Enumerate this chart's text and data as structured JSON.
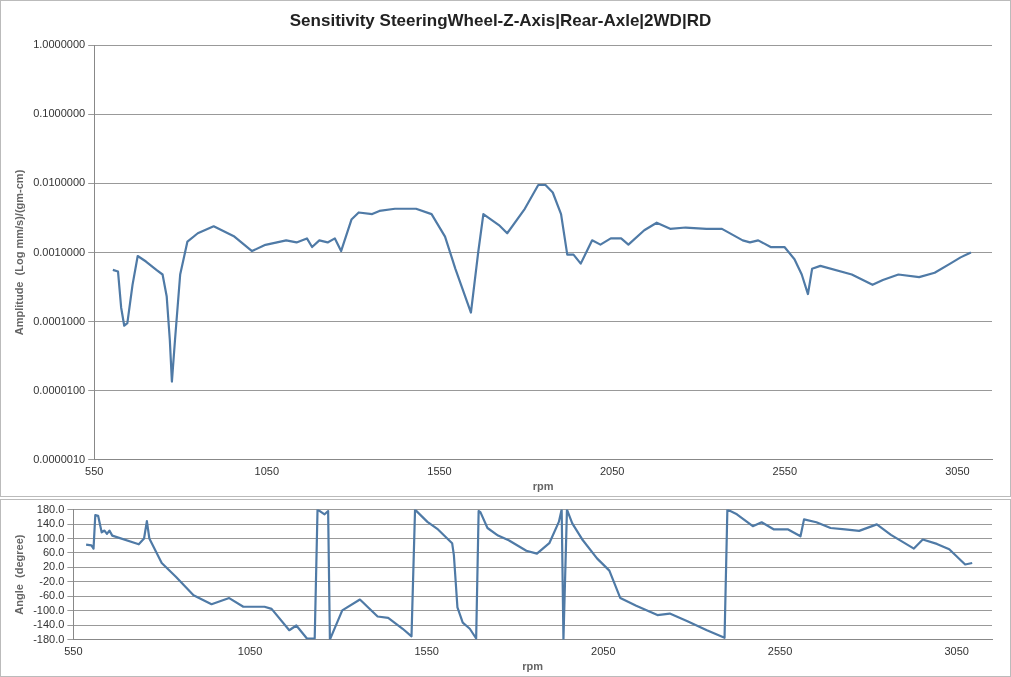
{
  "chart_data": [
    {
      "type": "line",
      "title": "Sensitivity SteeringWheel-Z-Axis|Rear-Axle|2WD|RD",
      "xlabel": "rpm",
      "ylabel": "Amplitude  (Log mm/s)/(gm-cm)",
      "log": "y",
      "grid": "y",
      "legend": false,
      "marker": "none",
      "xlim": [
        550,
        3150
      ],
      "xticks": [
        550,
        1050,
        1550,
        2050,
        2550,
        3050
      ],
      "ylim": [
        1e-06,
        1
      ],
      "yticks": [
        {
          "value": 1e-06,
          "label": "0.0000010"
        },
        {
          "value": 1e-05,
          "label": "0.0000100"
        },
        {
          "value": 0.0001,
          "label": "0.0001000"
        },
        {
          "value": 0.001,
          "label": "0.0010000"
        },
        {
          "value": 0.01,
          "label": "0.0100000"
        },
        {
          "value": 0.1,
          "label": "0.1000000"
        },
        {
          "value": 1,
          "label": "1.0000000"
        }
      ],
      "x": [
        604,
        619,
        628,
        637,
        646,
        661,
        676,
        700,
        730,
        748,
        760,
        769,
        775,
        784,
        799,
        820,
        850,
        896,
        956,
        1007,
        1046,
        1106,
        1136,
        1166,
        1181,
        1202,
        1226,
        1247,
        1265,
        1295,
        1316,
        1355,
        1376,
        1421,
        1482,
        1527,
        1566,
        1596,
        1641,
        1662,
        1677,
        1722,
        1746,
        1797,
        1836,
        1857,
        1878,
        1902,
        1920,
        1938,
        1959,
        1992,
        2016,
        2046,
        2076,
        2097,
        2143,
        2179,
        2218,
        2263,
        2323,
        2368,
        2428,
        2449,
        2473,
        2509,
        2549,
        2578,
        2599,
        2617,
        2629,
        2653,
        2744,
        2804,
        2834,
        2879,
        2939,
        2984,
        3029,
        3059,
        3089
      ],
      "series": [
        {
          "color": "#4f7aa6",
          "values": [
            0.00056,
            0.00053,
            0.00016,
            8.7e-05,
            9.5e-05,
            0.00034,
            0.00089,
            0.00074,
            0.00056,
            0.00048,
            0.00023,
            5.4e-05,
            1.35e-05,
            5.4e-05,
            0.00048,
            0.00144,
            0.0019,
            0.0024,
            0.0017,
            0.00105,
            0.00129,
            0.0015,
            0.0014,
            0.0016,
            0.0012,
            0.0015,
            0.0014,
            0.0016,
            0.00105,
            0.003,
            0.0038,
            0.0036,
            0.004,
            0.0043,
            0.0043,
            0.0036,
            0.0017,
            0.00058,
            0.000135,
            0.001,
            0.0036,
            0.0025,
            0.0019,
            0.0043,
            0.0095,
            0.0095,
            0.0074,
            0.0036,
            0.00093,
            0.00093,
            0.00069,
            0.0015,
            0.0013,
            0.0016,
            0.0016,
            0.0013,
            0.0021,
            0.0027,
            0.0022,
            0.0023,
            0.0022,
            0.0022,
            0.0015,
            0.0014,
            0.0015,
            0.0012,
            0.0012,
            0.0008,
            0.00048,
            0.00025,
            0.00058,
            0.00064,
            0.00048,
            0.00034,
            0.0004,
            0.00048,
            0.00044,
            0.00051,
            0.00069,
            0.00085,
            0.001
          ]
        }
      ]
    },
    {
      "type": "line",
      "xlabel": "rpm",
      "ylabel": "Angle  (degree)",
      "grid": "y",
      "legend": false,
      "marker": "none",
      "xlim": [
        550,
        3150
      ],
      "xticks": [
        550,
        1050,
        1550,
        2050,
        2550,
        3050
      ],
      "ylim": [
        -180,
        180
      ],
      "yticks": [
        {
          "value": -180,
          "label": "-180.0"
        },
        {
          "value": -140,
          "label": "-140.0"
        },
        {
          "value": -100,
          "label": "-100.0"
        },
        {
          "value": -60,
          "label": "-60.0"
        },
        {
          "value": -20,
          "label": "-20.0"
        },
        {
          "value": 20,
          "label": "20.0"
        },
        {
          "value": 60,
          "label": "60.0"
        },
        {
          "value": 100,
          "label": "100.0"
        },
        {
          "value": 140,
          "label": "140.0"
        },
        {
          "value": 180,
          "label": "180.0"
        }
      ],
      "x": [
        586,
        601,
        607,
        612,
        620,
        630,
        638,
        645,
        652,
        660,
        735,
        750,
        758,
        765,
        800,
        840,
        890,
        941,
        991,
        1031,
        1091,
        1111,
        1161,
        1181,
        1211,
        1233,
        1241,
        1261,
        1271,
        1276,
        1311,
        1361,
        1411,
        1441,
        1482,
        1507,
        1517,
        1552,
        1582,
        1622,
        1627,
        1637,
        1652,
        1672,
        1690,
        1697,
        1702,
        1722,
        1752,
        1782,
        1832,
        1862,
        1897,
        1924,
        1932,
        1937,
        1947,
        1962,
        1992,
        2032,
        2067,
        2098,
        2143,
        2203,
        2238,
        2288,
        2343,
        2393,
        2401,
        2428,
        2473,
        2498,
        2533,
        2573,
        2608,
        2618,
        2653,
        2693,
        2734,
        2774,
        2824,
        2864,
        2929,
        2954,
        2994,
        3029,
        3074,
        3094
      ],
      "series": [
        {
          "color": "#4f7aa6",
          "values": [
            83,
            81,
            72,
            165,
            163,
            117,
            122,
            113,
            122,
            108,
            84,
            100,
            148,
            100,
            32,
            -6,
            -57,
            -82,
            -65,
            -89,
            -89,
            -95,
            -154,
            -141,
            -177,
            -177,
            180,
            167,
            176,
            -180,
            -99,
            -69,
            -116,
            -120,
            -150,
            -171,
            180,
            146,
            125,
            87,
            53,
            -91,
            -133,
            -150,
            -177,
            176,
            173,
            129,
            108,
            95,
            66,
            58,
            87,
            146,
            180,
            -180,
            180,
            142,
            95,
            45,
            11,
            -65,
            -86,
            -112,
            -108,
            -129,
            -154,
            -175,
            180,
            167,
            134,
            145,
            125,
            125,
            106,
            153,
            145,
            129,
            125,
            121,
            139,
            110,
            72,
            97,
            85,
            70,
            28,
            32
          ]
        }
      ]
    }
  ]
}
